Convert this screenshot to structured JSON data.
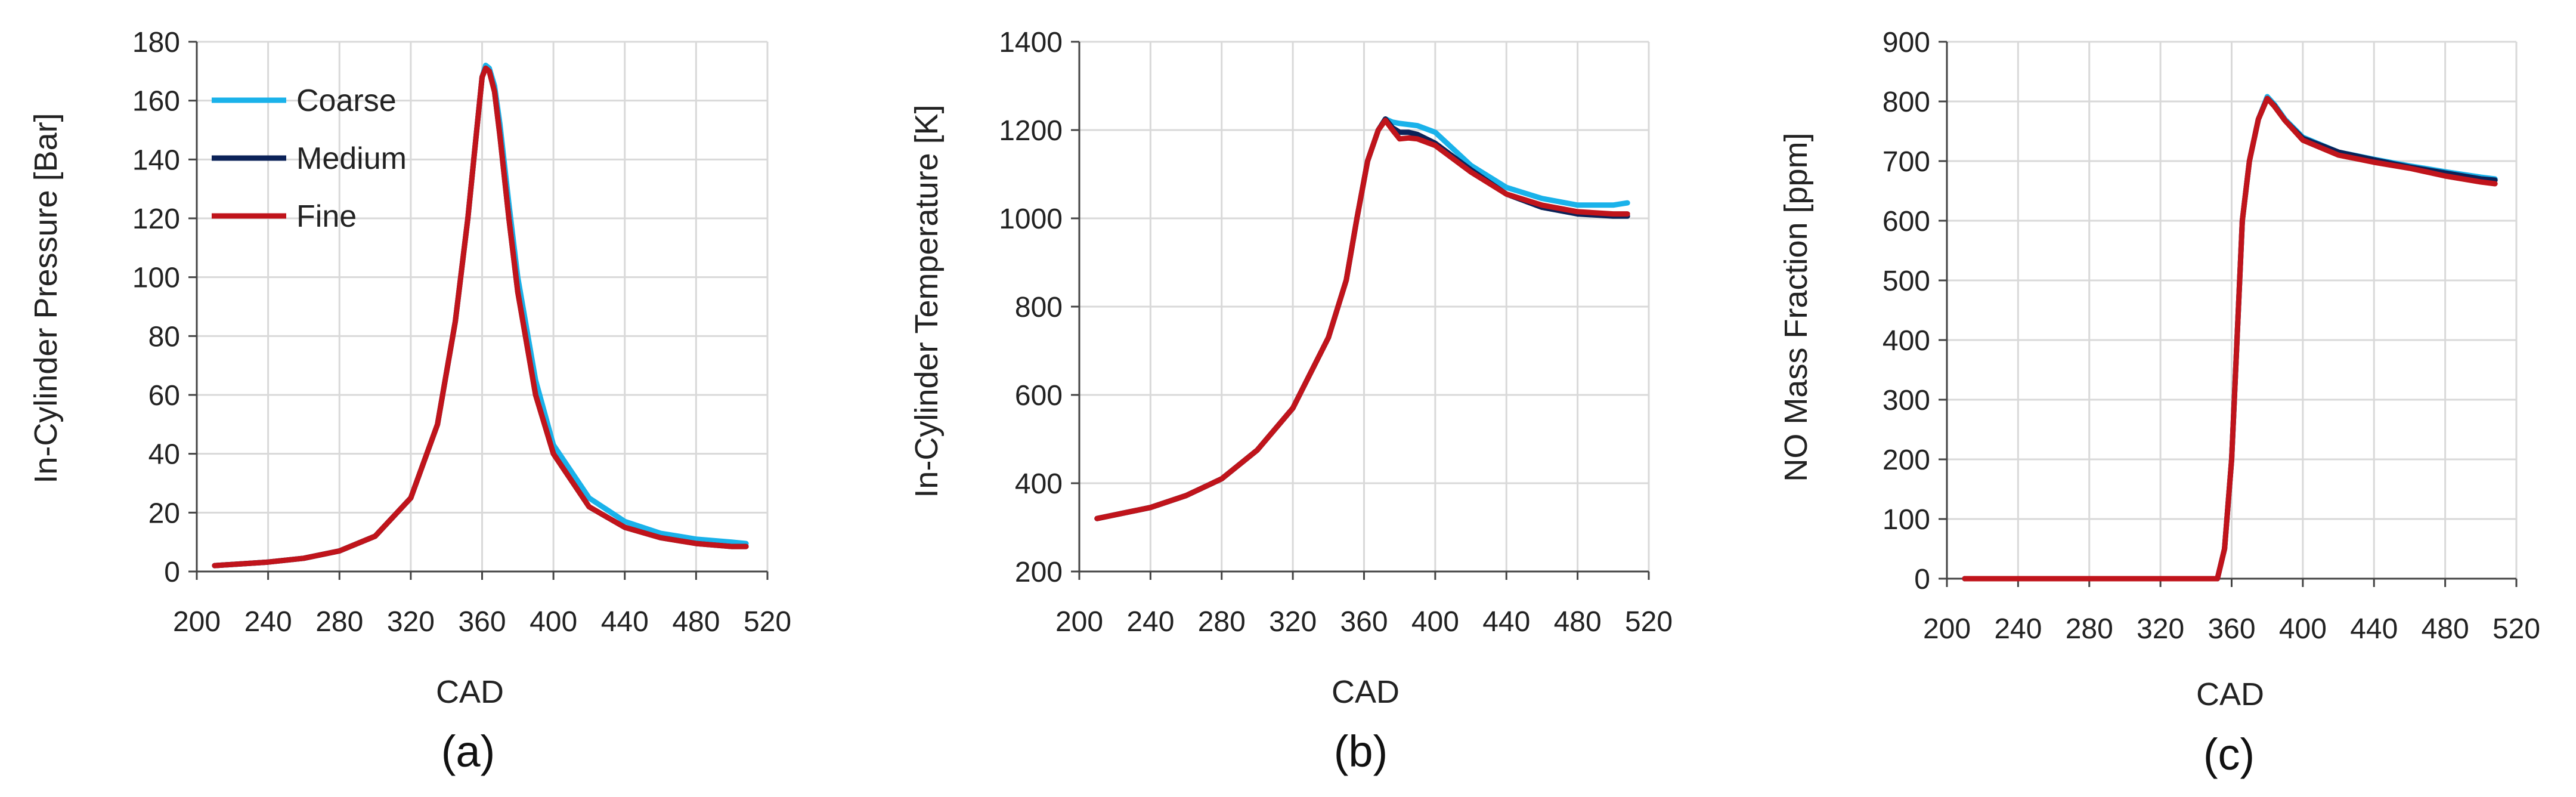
{
  "colors": {
    "Coarse": "#1ab2ea",
    "Medium": "#0b2258",
    "Fine": "#c0141b"
  },
  "legend": {
    "position": "top-left of panel (a)"
  },
  "chart_data": [
    {
      "type": "line",
      "panel_label": "(a)",
      "title": "",
      "xlabel": "CAD",
      "ylabel": "In-Cylinder Pressure [Bar]",
      "xlim": [
        200,
        520
      ],
      "ylim": [
        0,
        180
      ],
      "xticks": [
        "200",
        "240",
        "280",
        "320",
        "360",
        "400",
        "440",
        "480",
        "520"
      ],
      "yticks": [
        "0",
        "20",
        "40",
        "60",
        "80",
        "100",
        "120",
        "140",
        "160",
        "180"
      ],
      "grid": true,
      "legend": [
        "Coarse",
        "Medium",
        "Fine"
      ],
      "series": [
        {
          "name": "Coarse",
          "points": [
            [
              210,
              2
            ],
            [
              240,
              3.2
            ],
            [
              260,
              4.5
            ],
            [
              280,
              7
            ],
            [
              300,
              12
            ],
            [
              320,
              25
            ],
            [
              335,
              50
            ],
            [
              345,
              85
            ],
            [
              352,
              120
            ],
            [
              357,
              150
            ],
            [
              360,
              168
            ],
            [
              362,
              172
            ],
            [
              364,
              171
            ],
            [
              367,
              165
            ],
            [
              370,
              152
            ],
            [
              375,
              125
            ],
            [
              380,
              100
            ],
            [
              390,
              65
            ],
            [
              400,
              43
            ],
            [
              420,
              25
            ],
            [
              440,
              17
            ],
            [
              460,
              13
            ],
            [
              480,
              11
            ],
            [
              500,
              10
            ],
            [
              508,
              9.5
            ]
          ]
        },
        {
          "name": "Medium",
          "points": [
            [
              210,
              2
            ],
            [
              240,
              3.2
            ],
            [
              260,
              4.5
            ],
            [
              280,
              7
            ],
            [
              300,
              12
            ],
            [
              320,
              25
            ],
            [
              335,
              50
            ],
            [
              345,
              85
            ],
            [
              352,
              120
            ],
            [
              357,
              150
            ],
            [
              360,
              168
            ],
            [
              362,
              171
            ],
            [
              364,
              170
            ],
            [
              367,
              163
            ],
            [
              370,
              148
            ],
            [
              375,
              120
            ],
            [
              380,
              95
            ],
            [
              390,
              60
            ],
            [
              400,
              40
            ],
            [
              420,
              22
            ],
            [
              440,
              15
            ],
            [
              460,
              11.5
            ],
            [
              480,
              9.5
            ],
            [
              500,
              8.5
            ],
            [
              508,
              8.5
            ]
          ]
        },
        {
          "name": "Fine",
          "points": [
            [
              210,
              2
            ],
            [
              240,
              3.2
            ],
            [
              260,
              4.5
            ],
            [
              280,
              7
            ],
            [
              300,
              12
            ],
            [
              320,
              25
            ],
            [
              335,
              50
            ],
            [
              345,
              85
            ],
            [
              352,
              120
            ],
            [
              357,
              150
            ],
            [
              360,
              168
            ],
            [
              362,
              171
            ],
            [
              364,
              170
            ],
            [
              367,
              163
            ],
            [
              370,
              148
            ],
            [
              375,
              120
            ],
            [
              380,
              95
            ],
            [
              390,
              60
            ],
            [
              400,
              40
            ],
            [
              420,
              22
            ],
            [
              440,
              15
            ],
            [
              460,
              11.5
            ],
            [
              480,
              9.5
            ],
            [
              500,
              8.5
            ],
            [
              508,
              8.5
            ]
          ]
        }
      ]
    },
    {
      "type": "line",
      "panel_label": "(b)",
      "title": "",
      "xlabel": "CAD",
      "ylabel": "In-Cylinder Temperature  [K]",
      "xlim": [
        200,
        520
      ],
      "ylim": [
        200,
        1400
      ],
      "xticks": [
        "200",
        "240",
        "280",
        "320",
        "360",
        "400",
        "440",
        "480",
        "520"
      ],
      "yticks": [
        "200",
        "400",
        "600",
        "800",
        "1000",
        "1200",
        "1400"
      ],
      "grid": true,
      "series": [
        {
          "name": "Coarse",
          "points": [
            [
              210,
              320
            ],
            [
              240,
              345
            ],
            [
              260,
              372
            ],
            [
              280,
              410
            ],
            [
              300,
              475
            ],
            [
              320,
              570
            ],
            [
              340,
              730
            ],
            [
              350,
              860
            ],
            [
              356,
              1000
            ],
            [
              362,
              1130
            ],
            [
              368,
              1200
            ],
            [
              372,
              1225
            ],
            [
              376,
              1218
            ],
            [
              380,
              1215
            ],
            [
              390,
              1210
            ],
            [
              400,
              1195
            ],
            [
              420,
              1120
            ],
            [
              440,
              1070
            ],
            [
              460,
              1045
            ],
            [
              480,
              1030
            ],
            [
              500,
              1030
            ],
            [
              508,
              1035
            ]
          ]
        },
        {
          "name": "Medium",
          "points": [
            [
              210,
              320
            ],
            [
              240,
              345
            ],
            [
              260,
              372
            ],
            [
              280,
              410
            ],
            [
              300,
              475
            ],
            [
              320,
              570
            ],
            [
              340,
              730
            ],
            [
              350,
              860
            ],
            [
              356,
              1000
            ],
            [
              362,
              1130
            ],
            [
              368,
              1200
            ],
            [
              372,
              1225
            ],
            [
              376,
              1205
            ],
            [
              380,
              1195
            ],
            [
              385,
              1195
            ],
            [
              390,
              1190
            ],
            [
              400,
              1170
            ],
            [
              420,
              1110
            ],
            [
              440,
              1055
            ],
            [
              460,
              1025
            ],
            [
              480,
              1010
            ],
            [
              500,
              1005
            ],
            [
              508,
              1005
            ]
          ]
        },
        {
          "name": "Fine",
          "points": [
            [
              210,
              320
            ],
            [
              240,
              345
            ],
            [
              260,
              372
            ],
            [
              280,
              410
            ],
            [
              300,
              475
            ],
            [
              320,
              570
            ],
            [
              340,
              730
            ],
            [
              350,
              860
            ],
            [
              356,
              1000
            ],
            [
              362,
              1130
            ],
            [
              368,
              1200
            ],
            [
              372,
              1222
            ],
            [
              376,
              1200
            ],
            [
              380,
              1180
            ],
            [
              385,
              1182
            ],
            [
              390,
              1180
            ],
            [
              400,
              1165
            ],
            [
              420,
              1105
            ],
            [
              440,
              1055
            ],
            [
              460,
              1030
            ],
            [
              480,
              1015
            ],
            [
              500,
              1010
            ],
            [
              508,
              1010
            ]
          ]
        }
      ]
    },
    {
      "type": "line",
      "panel_label": "(c)",
      "title": "",
      "xlabel": "CAD",
      "ylabel": "NO Mass Fraction [ppm]",
      "xlim": [
        200,
        520
      ],
      "ylim": [
        0,
        900
      ],
      "xticks": [
        "200",
        "240",
        "280",
        "320",
        "360",
        "400",
        "440",
        "480",
        "520"
      ],
      "yticks": [
        "0",
        "100",
        "200",
        "300",
        "400",
        "500",
        "600",
        "700",
        "800",
        "900"
      ],
      "grid": true,
      "series": [
        {
          "name": "Coarse",
          "points": [
            [
              210,
              0
            ],
            [
              340,
              0
            ],
            [
              352,
              0
            ],
            [
              356,
              50
            ],
            [
              360,
              200
            ],
            [
              363,
              400
            ],
            [
              366,
              600
            ],
            [
              370,
              700
            ],
            [
              375,
              770
            ],
            [
              380,
              808
            ],
            [
              384,
              795
            ],
            [
              390,
              770
            ],
            [
              400,
              740
            ],
            [
              420,
              715
            ],
            [
              440,
              703
            ],
            [
              460,
              692
            ],
            [
              480,
              682
            ],
            [
              500,
              673
            ],
            [
              508,
              670
            ]
          ]
        },
        {
          "name": "Medium",
          "points": [
            [
              210,
              0
            ],
            [
              340,
              0
            ],
            [
              352,
              0
            ],
            [
              356,
              50
            ],
            [
              360,
              200
            ],
            [
              363,
              400
            ],
            [
              366,
              600
            ],
            [
              370,
              700
            ],
            [
              375,
              770
            ],
            [
              380,
              805
            ],
            [
              384,
              793
            ],
            [
              390,
              768
            ],
            [
              400,
              738
            ],
            [
              420,
              715
            ],
            [
              440,
              702
            ],
            [
              460,
              690
            ],
            [
              480,
              680
            ],
            [
              500,
              670
            ],
            [
              508,
              668
            ]
          ]
        },
        {
          "name": "Fine",
          "points": [
            [
              210,
              0
            ],
            [
              340,
              0
            ],
            [
              352,
              0
            ],
            [
              356,
              50
            ],
            [
              360,
              200
            ],
            [
              363,
              400
            ],
            [
              366,
              600
            ],
            [
              370,
              700
            ],
            [
              375,
              770
            ],
            [
              380,
              805
            ],
            [
              384,
              792
            ],
            [
              390,
              768
            ],
            [
              400,
              735
            ],
            [
              420,
              710
            ],
            [
              440,
              698
            ],
            [
              460,
              688
            ],
            [
              480,
              675
            ],
            [
              500,
              665
            ],
            [
              508,
              662
            ]
          ]
        }
      ]
    }
  ]
}
